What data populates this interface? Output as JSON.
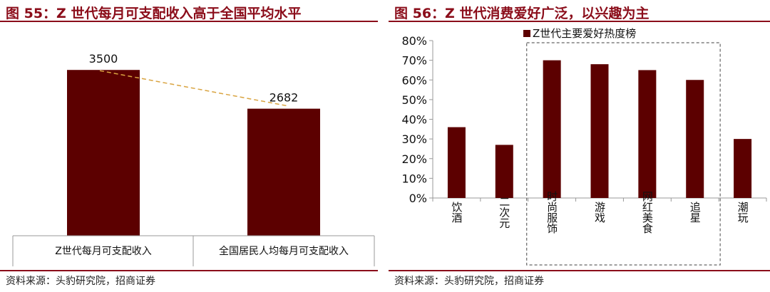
{
  "charts": [
    {
      "fig_title": "图 55：Z 世代每月可支配收入高于全国平均水平",
      "source": "资料来源：头豹研究院，招商证券"
    },
    {
      "fig_title": "图 56：Z 世代消费爱好广泛，以兴趣为主",
      "source": "资料来源：头豹研究院，招商证券"
    }
  ],
  "colors": {
    "bar": "#5c0000",
    "accent": "#8b0d1a",
    "trend": "#d9a441"
  },
  "chart_data": [
    {
      "type": "bar",
      "categories": [
        "Z世代每月可支配收入",
        "全国居民人均每月可支配收入"
      ],
      "values": [
        3500,
        2682
      ],
      "value_labels": [
        "3500",
        "2682"
      ],
      "title": "",
      "xlabel": "",
      "ylabel": "",
      "ylim": [
        0,
        4300
      ],
      "trend_line": true,
      "grid": false
    },
    {
      "type": "bar",
      "categories": [
        "饮酒",
        "二次元",
        "时尚服饰",
        "游戏",
        "网红美食",
        "追星",
        "潮玩"
      ],
      "values": [
        36,
        27,
        70,
        68,
        65,
        60,
        30
      ],
      "series": [
        {
          "name": "Z世代主要爱好热度榜",
          "values": [
            36,
            27,
            70,
            68,
            65,
            60,
            30
          ]
        }
      ],
      "title": "",
      "xlabel": "",
      "ylabel": "",
      "ylim": [
        0,
        80
      ],
      "yticks": [
        "0%",
        "10%",
        "20%",
        "30%",
        "40%",
        "50%",
        "60%",
        "70%",
        "80%"
      ],
      "legend": "top-center",
      "highlight_categories": [
        "时尚服饰",
        "游戏",
        "网红美食",
        "追星"
      ],
      "grid": false
    }
  ]
}
